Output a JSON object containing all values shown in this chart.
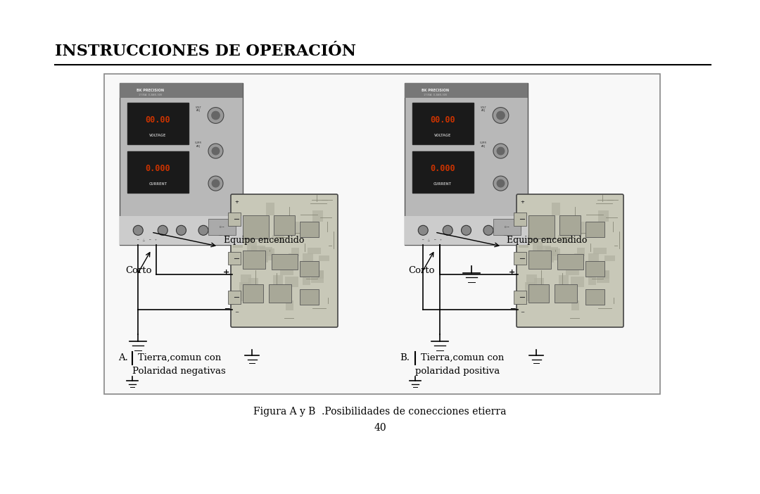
{
  "title": "INSTRUCCIONES DE OPERACIÓN",
  "caption": "Figura A y B  .Posibilidades de conecciones etierra",
  "page_number": "40",
  "bg_color": "#ffffff",
  "title_color": "#000000",
  "title_fontsize": 16,
  "caption_fontsize": 10,
  "page_num_fontsize": 10,
  "equipo_text": "Equipo encendido",
  "corto_text": "Corto",
  "label_A_line1": "A.    Tierra,comun con",
  "label_A_line2": "       Polaridad negativas",
  "label_B_line1": "B.    Tierra,comun con",
  "label_B_line2": "        polaridad positiva"
}
